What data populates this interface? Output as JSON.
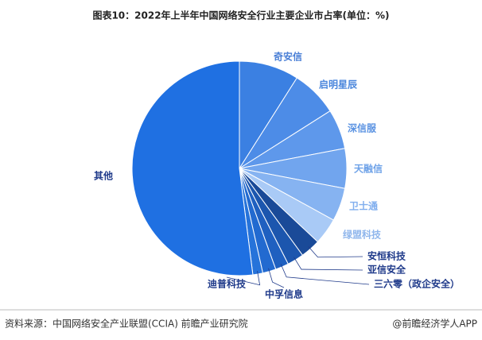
{
  "chart_data": {
    "type": "pie",
    "title": "图表10：2022年上半年中国网络安全行业主要企业市占率(单位：%)",
    "categories": [
      "奇安信",
      "启明星辰",
      "深信服",
      "天融信",
      "卫士通",
      "绿盟科技",
      "安恒科技",
      "亚信安全",
      "三六零（政企安全）",
      "中孚信息",
      "迪普科技",
      "其他"
    ],
    "values": [
      9,
      7,
      6,
      6,
      5,
      4,
      3,
      2.5,
      2,
      2,
      1.5,
      52
    ],
    "colors": [
      "#3b80e2",
      "#4d8ce7",
      "#5e98eb",
      "#71a5ee",
      "#86b3f1",
      "#a9caf6",
      "#1a4a98",
      "#1c56ae",
      "#1f60c0",
      "#226ad0",
      "#2673da",
      "#1f70e2"
    ]
  },
  "footer": {
    "source": "资料来源：中国网络安全产业联盟(CCIA) 前瞻产业研究院",
    "credit": "@前瞻经济学人APP"
  }
}
